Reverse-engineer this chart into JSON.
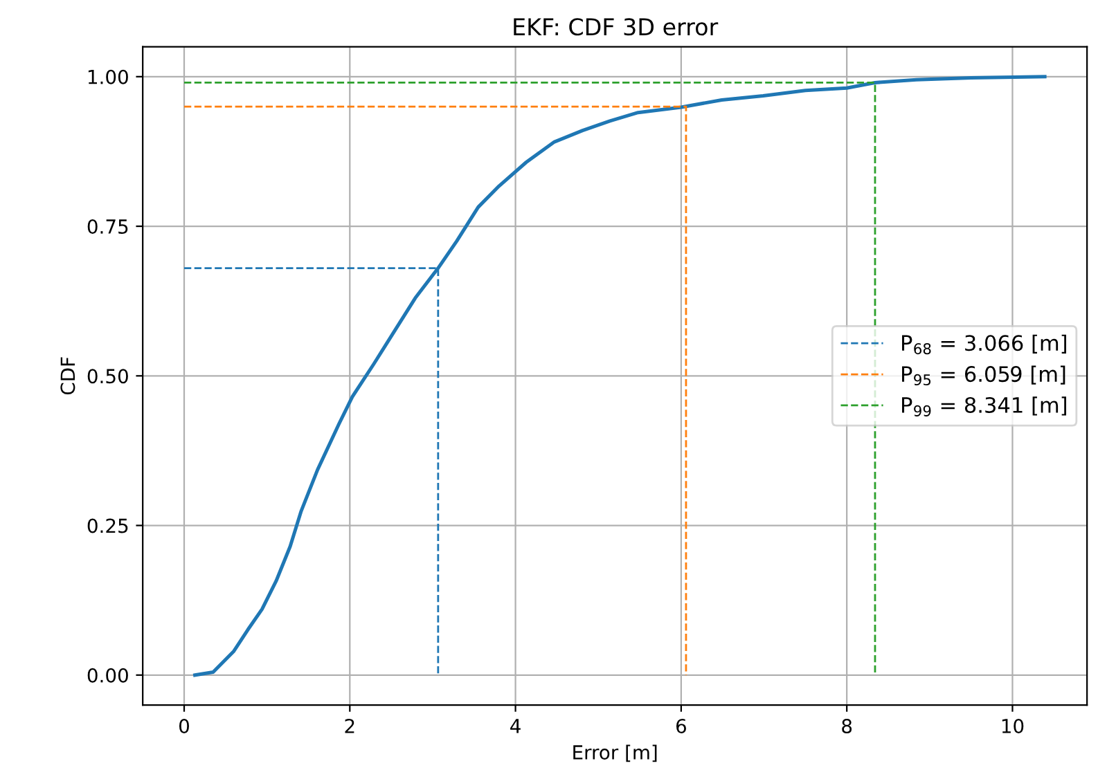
{
  "chart_data": {
    "type": "line",
    "title": "EKF: CDF 3D error",
    "xlabel": "Error [m]",
    "ylabel": "CDF",
    "xlim": [
      -0.5,
      10.9
    ],
    "ylim": [
      -0.05,
      1.05
    ],
    "xticks": [
      0,
      2,
      4,
      6,
      8,
      10
    ],
    "yticks": [
      {
        "value": 0,
        "label": "0.00"
      },
      {
        "value": 0.25,
        "label": "0.25"
      },
      {
        "value": 0.5,
        "label": "0.50"
      },
      {
        "value": 0.75,
        "label": "0.75"
      },
      {
        "value": 1,
        "label": "1.00"
      }
    ],
    "grid": true,
    "legend": "right",
    "series": [
      {
        "color": "#1f77b4",
        "line_style": "solid",
        "x": [
          0.13,
          0.35,
          0.6,
          0.77,
          0.94,
          1.11,
          1.28,
          1.41,
          1.61,
          1.87,
          2.03,
          2.29,
          2.54,
          2.79,
          3.066,
          3.29,
          3.55,
          3.8,
          4.13,
          4.47,
          4.81,
          5.14,
          5.48,
          6.0,
          6.49,
          6.99,
          7.5,
          8.0,
          8.34,
          8.84,
          9.5,
          10.39
        ],
        "values": [
          0,
          0.005,
          0.04,
          0.076,
          0.11,
          0.157,
          0.215,
          0.273,
          0.343,
          0.42,
          0.465,
          0.52,
          0.575,
          0.63,
          0.68,
          0.725,
          0.782,
          0.817,
          0.857,
          0.891,
          0.91,
          0.926,
          0.94,
          0.949,
          0.961,
          0.968,
          0.977,
          0.981,
          0.99,
          0.995,
          0.998,
          1.0
        ]
      },
      {
        "name": "P$_{68}$ = 3.066 [m]",
        "color": "#1f77b4",
        "line_style": "dashed",
        "x": [
          0,
          3.066,
          3.066
        ],
        "values": [
          0.68,
          0.68,
          0
        ]
      },
      {
        "name": "P$_{95}$ = 6.059 [m]",
        "color": "#ff7f0e",
        "line_style": "dashed",
        "x": [
          0,
          6.059,
          6.059
        ],
        "values": [
          0.95,
          0.95,
          0
        ]
      },
      {
        "name": "P$_{99}$ = 8.341 [m]",
        "color": "#2ca02c",
        "line_style": "dashed",
        "x": [
          0,
          8.341,
          8.341
        ],
        "values": [
          0.99,
          0.99,
          0
        ]
      }
    ]
  }
}
